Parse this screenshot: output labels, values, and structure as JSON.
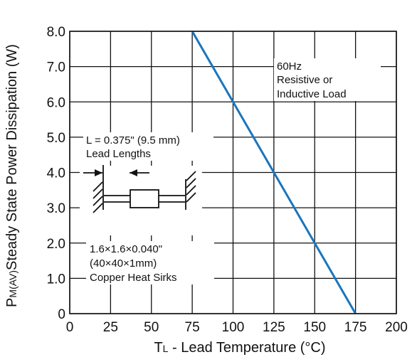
{
  "chart_data": {
    "type": "line",
    "x_ticks": [
      "0",
      "25",
      "50",
      "75",
      "100",
      "125",
      "150",
      "175",
      "200"
    ],
    "y_ticks": [
      "0",
      "1.0",
      "2.0",
      "3.0",
      "4.0",
      "5.0",
      "6.0",
      "7.0",
      "8.0"
    ],
    "xlim": [
      0,
      200
    ],
    "ylim": [
      0,
      8
    ],
    "grid": true,
    "ylabel_sub": "M(AV)",
    "series": [
      {
        "color": "#1a75bc",
        "x": [
          75,
          100,
          125,
          150,
          175
        ],
        "y": [
          8.0,
          6.0,
          4.0,
          2.0,
          0
        ]
      }
    ],
    "annotations": {
      "freq": "60Hz",
      "load1": "Resistive or",
      "load2": "Inductive Load",
      "lead1": "L = 0.375\" (9.5 mm)",
      "lead2": "Lead Lengths",
      "sink1": "1.6×1.6×0.040\"",
      "sink2": "(40×40×1mm)",
      "sink3": "Copper Heat Sirks"
    }
  },
  "axis_text": {
    "x_prefix": "T",
    "x_sub": "L",
    "x_rest": " - Lead Temperature (°C)",
    "y_prefix": "P",
    "y_rest": "Steady State Power Dissipation (W)"
  }
}
